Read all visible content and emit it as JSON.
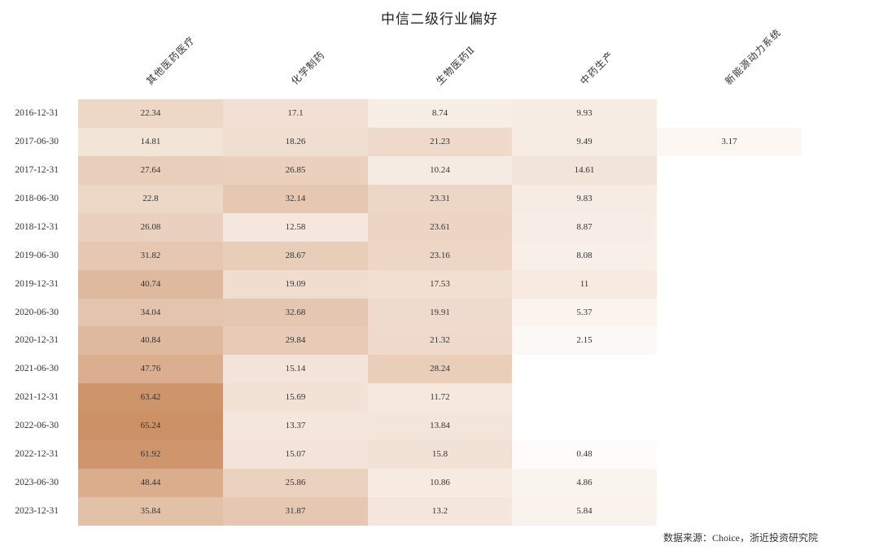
{
  "chart_data": {
    "type": "heatmap",
    "title": "中信二级行业偏好",
    "columns": [
      "其他医药医疗",
      "化学制药",
      "生物医药Ⅱ",
      "中药生产",
      "新能源动力系统"
    ],
    "rows": [
      "2016-12-31",
      "2017-06-30",
      "2017-12-31",
      "2018-06-30",
      "2018-12-31",
      "2019-06-30",
      "2019-12-31",
      "2020-06-30",
      "2020-12-31",
      "2021-06-30",
      "2021-12-31",
      "2022-06-30",
      "2022-12-31",
      "2023-06-30",
      "2023-12-31"
    ],
    "values": [
      [
        22.34,
        17.1,
        8.74,
        9.93,
        null
      ],
      [
        14.81,
        18.26,
        21.23,
        9.49,
        3.17
      ],
      [
        27.64,
        26.85,
        10.24,
        14.61,
        null
      ],
      [
        22.8,
        32.14,
        23.31,
        9.83,
        null
      ],
      [
        26.08,
        12.58,
        23.61,
        8.87,
        null
      ],
      [
        31.82,
        28.67,
        23.16,
        8.08,
        null
      ],
      [
        40.74,
        19.09,
        17.53,
        11,
        null
      ],
      [
        34.04,
        32.68,
        19.91,
        5.37,
        null
      ],
      [
        40.84,
        29.84,
        21.32,
        2.15,
        null
      ],
      [
        47.76,
        15.14,
        28.24,
        null,
        null
      ],
      [
        63.42,
        15.69,
        11.72,
        null,
        null
      ],
      [
        65.24,
        13.37,
        13.84,
        null,
        null
      ],
      [
        61.92,
        15.07,
        15.8,
        0.48,
        null
      ],
      [
        48.44,
        25.86,
        10.86,
        4.86,
        null
      ],
      [
        35.84,
        31.87,
        13.2,
        5.84,
        null
      ]
    ],
    "colormap": {
      "low": "#fefcfa",
      "high": "#cd9166"
    }
  },
  "source": "数据来源：Choice，浙近投资研究院"
}
